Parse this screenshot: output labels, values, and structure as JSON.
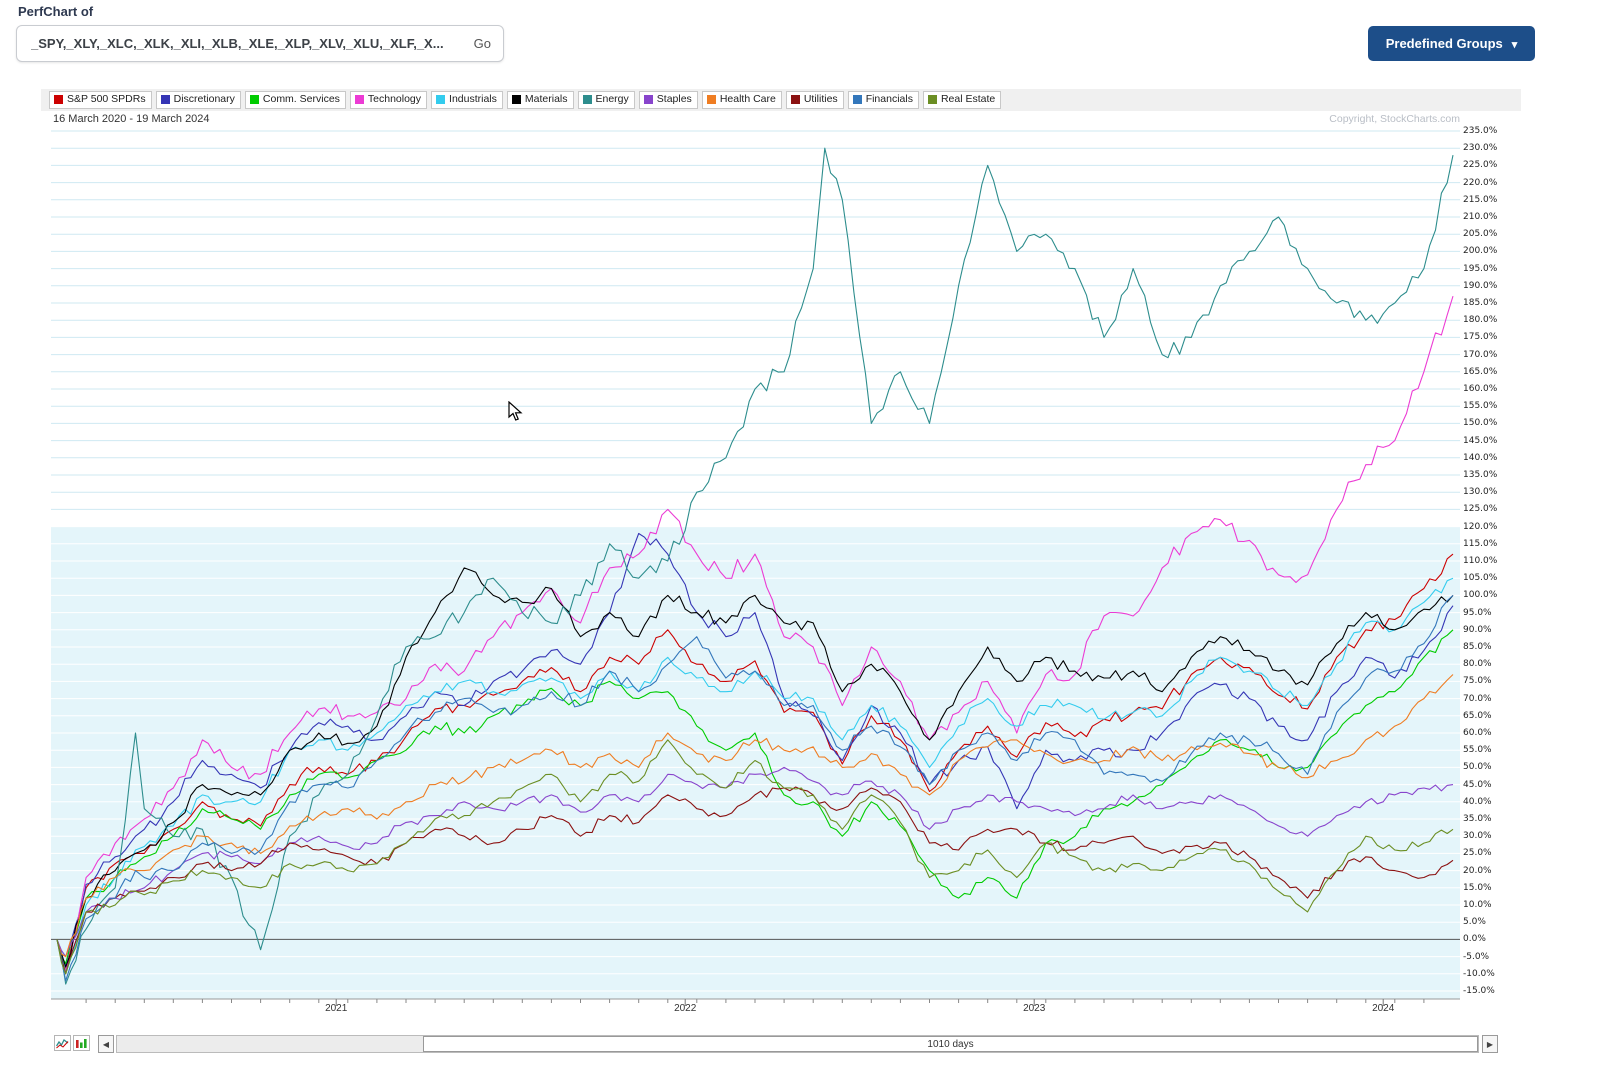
{
  "header": {
    "title": "PerfChart of",
    "symbols_value": "_SPY,_XLY,_XLC,_XLK,_XLI,_XLB,_XLE,_XLP,_XLV,_XLU,_XLF,_X...",
    "go_label": "Go",
    "predefined_groups_label": "Predefined Groups"
  },
  "icons": {
    "chevron_down": "▾",
    "scroll_left": "◀",
    "scroll_right": "▶"
  },
  "chart_header": {
    "date_range": "16 March 2020 - 19 March 2024",
    "copyright": "Copyright, StockCharts.com"
  },
  "footer": {
    "range_label": "1010 days"
  },
  "chart_data": {
    "type": "line",
    "x_unit": "months since 16 March 2020",
    "ylim": [
      -15,
      235
    ],
    "y_tick_step": 5,
    "y_tick_suffix": "%",
    "band_below": 120,
    "year_ticks": [
      {
        "label": "2021",
        "month": 9.6
      },
      {
        "label": "2022",
        "month": 21.6
      },
      {
        "label": "2023",
        "month": 33.6
      },
      {
        "label": "2024",
        "month": 45.6
      }
    ],
    "x": [
      0,
      0.3,
      1,
      2,
      2.7,
      3,
      4,
      5,
      6,
      7,
      8,
      9,
      10,
      11,
      12,
      13,
      14,
      15,
      16,
      17,
      18,
      19,
      20,
      21,
      22,
      23,
      24,
      25,
      26,
      26.4,
      27,
      28,
      29,
      30,
      31,
      32,
      33,
      34,
      35,
      36,
      37,
      38,
      39,
      40,
      41,
      42,
      43,
      44,
      45,
      46,
      47,
      48
    ],
    "series": [
      {
        "name": "S&P 500 SPDRs",
        "color": "#cc0000",
        "values": [
          0,
          -9,
          15,
          22,
          25,
          25,
          32,
          40,
          35,
          33,
          45,
          50,
          48,
          52,
          59,
          67,
          68,
          71,
          75,
          79,
          72,
          82,
          80,
          90,
          80,
          75,
          81,
          66,
          66,
          60,
          51,
          65,
          58,
          43,
          55,
          62,
          53,
          63,
          59,
          64,
          66,
          67,
          77,
          82,
          79,
          71,
          67,
          82,
          90,
          93,
          102,
          112
        ]
      },
      {
        "name": "Discretionary",
        "color": "#3535b5",
        "values": [
          0,
          -8,
          16,
          24,
          30,
          32,
          40,
          52,
          48,
          44,
          55,
          63,
          62,
          58,
          65,
          72,
          68,
          75,
          78,
          84,
          80,
          95,
          118,
          112,
          95,
          88,
          95,
          70,
          65,
          60,
          52,
          68,
          60,
          45,
          52,
          56,
          38,
          55,
          52,
          55,
          55,
          60,
          70,
          74,
          70,
          62,
          58,
          72,
          82,
          76,
          84,
          97
        ]
      },
      {
        "name": "Comm. Services",
        "color": "#00cc00",
        "values": [
          0,
          -7,
          12,
          18,
          22,
          24,
          30,
          38,
          35,
          32,
          42,
          48,
          47,
          52,
          55,
          62,
          60,
          65,
          68,
          73,
          68,
          75,
          70,
          72,
          62,
          55,
          60,
          42,
          40,
          36,
          30,
          40,
          33,
          20,
          12,
          18,
          12,
          28,
          30,
          38,
          40,
          45,
          52,
          58,
          55,
          50,
          50,
          60,
          68,
          72,
          82,
          90
        ]
      },
      {
        "name": "Technology",
        "color": "#ec3bd4",
        "values": [
          0,
          -9,
          18,
          28,
          33,
          35,
          44,
          58,
          50,
          48,
          60,
          67,
          65,
          66,
          70,
          80,
          78,
          88,
          95,
          102,
          92,
          108,
          112,
          125,
          112,
          105,
          112,
          88,
          85,
          80,
          68,
          85,
          75,
          58,
          66,
          75,
          60,
          77,
          77,
          94,
          94,
          108,
          118,
          122,
          116,
          106,
          106,
          125,
          138,
          145,
          165,
          187
        ]
      },
      {
        "name": "Industrials",
        "color": "#33ccee",
        "values": [
          0,
          -10,
          10,
          18,
          26,
          27,
          33,
          42,
          40,
          40,
          55,
          58,
          55,
          60,
          68,
          72,
          75,
          72,
          74,
          76,
          70,
          78,
          72,
          82,
          76,
          72,
          78,
          70,
          70,
          66,
          58,
          68,
          62,
          50,
          62,
          70,
          62,
          68,
          68,
          64,
          66,
          65,
          75,
          82,
          78,
          72,
          68,
          80,
          92,
          90,
          98,
          105
        ]
      },
      {
        "name": "Materials",
        "color": "#000000",
        "values": [
          0,
          -8,
          12,
          20,
          25,
          26,
          34,
          45,
          42,
          42,
          55,
          60,
          57,
          62,
          82,
          95,
          108,
          100,
          98,
          102,
          88,
          95,
          88,
          100,
          95,
          92,
          100,
          92,
          92,
          85,
          72,
          80,
          72,
          58,
          72,
          85,
          75,
          82,
          78,
          76,
          78,
          72,
          82,
          88,
          84,
          78,
          74,
          86,
          95,
          90,
          96,
          100
        ]
      },
      {
        "name": "Energy",
        "color": "#2d8d8d",
        "values": [
          0,
          -13,
          3,
          15,
          60,
          38,
          30,
          32,
          18,
          -3,
          30,
          42,
          48,
          65,
          85,
          88,
          95,
          105,
          95,
          92,
          100,
          115,
          105,
          110,
          130,
          140,
          160,
          165,
          195,
          230,
          215,
          150,
          165,
          150,
          190,
          225,
          200,
          205,
          195,
          175,
          195,
          170,
          175,
          190,
          200,
          210,
          195,
          185,
          180,
          185,
          195,
          228
        ]
      },
      {
        "name": "Staples",
        "color": "#8844cc",
        "values": [
          0,
          -5,
          8,
          12,
          14,
          15,
          20,
          25,
          24,
          22,
          28,
          30,
          27,
          28,
          34,
          36,
          40,
          38,
          40,
          42,
          37,
          42,
          40,
          48,
          45,
          44,
          48,
          50,
          46,
          44,
          42,
          46,
          42,
          32,
          38,
          42,
          40,
          38,
          36,
          38,
          42,
          38,
          40,
          42,
          38,
          33,
          30,
          36,
          40,
          42,
          44,
          45
        ]
      },
      {
        "name": "Health Care",
        "color": "#ef7d22",
        "values": [
          0,
          -5,
          12,
          18,
          20,
          20,
          26,
          30,
          28,
          25,
          33,
          36,
          38,
          35,
          40,
          45,
          46,
          50,
          52,
          55,
          50,
          54,
          50,
          60,
          54,
          52,
          58,
          55,
          56,
          53,
          50,
          54,
          48,
          42,
          52,
          56,
          58,
          54,
          52,
          52,
          56,
          52,
          56,
          57,
          54,
          50,
          47,
          52,
          58,
          62,
          70,
          77
        ]
      },
      {
        "name": "Utilities",
        "color": "#8b1111",
        "values": [
          0,
          -10,
          8,
          12,
          14,
          14,
          18,
          22,
          20,
          22,
          28,
          26,
          24,
          22,
          28,
          32,
          30,
          28,
          32,
          36,
          30,
          36,
          34,
          42,
          38,
          36,
          42,
          44,
          42,
          40,
          38,
          44,
          40,
          28,
          26,
          32,
          32,
          28,
          26,
          28,
          30,
          25,
          27,
          28,
          24,
          18,
          12,
          20,
          24,
          20,
          18,
          23
        ]
      },
      {
        "name": "Financials",
        "color": "#3377bb",
        "values": [
          0,
          -12,
          6,
          12,
          20,
          18,
          20,
          28,
          25,
          26,
          40,
          45,
          44,
          52,
          60,
          66,
          70,
          66,
          68,
          72,
          68,
          78,
          72,
          80,
          88,
          76,
          78,
          68,
          68,
          62,
          55,
          62,
          56,
          45,
          55,
          60,
          52,
          60,
          58,
          48,
          48,
          46,
          54,
          60,
          58,
          54,
          48,
          66,
          76,
          78,
          86,
          100
        ]
      },
      {
        "name": "Real Estate",
        "color": "#6b8e23",
        "values": [
          0,
          -10,
          8,
          10,
          14,
          13,
          17,
          20,
          18,
          15,
          22,
          22,
          20,
          22,
          28,
          35,
          36,
          40,
          44,
          48,
          40,
          48,
          46,
          58,
          48,
          44,
          52,
          44,
          42,
          38,
          32,
          42,
          34,
          18,
          20,
          26,
          18,
          28,
          24,
          20,
          22,
          20,
          24,
          26,
          22,
          14,
          8,
          20,
          30,
          26,
          28,
          32
        ]
      }
    ],
    "style": {
      "band_color": "#e4f5fa",
      "grid_color_upper": "#cfe9f2",
      "grid_color_band": "#ffffff",
      "zero_line_color": "#555555",
      "axis_color": "#999999",
      "tick_color": "#888888"
    }
  }
}
